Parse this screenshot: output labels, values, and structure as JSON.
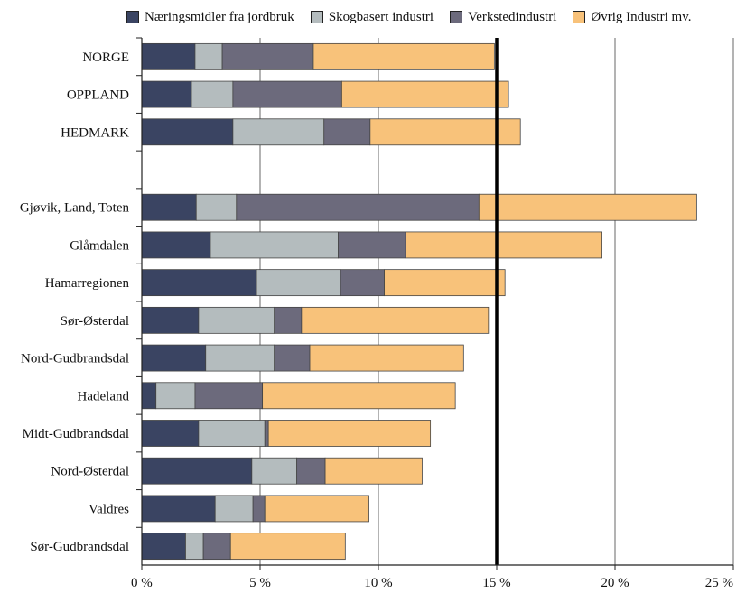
{
  "chart_data": {
    "type": "bar",
    "orientation": "horizontal",
    "stacked": true,
    "categories": [
      "NORGE",
      "OPPLAND",
      "HEDMARK",
      "",
      "Gjøvik, Land, Toten",
      "Glåmdalen",
      "Hamarregionen",
      "Sør-Østerdal",
      "Nord-Gudbrandsdal",
      "Hadeland",
      "Midt-Gudbrandsdal",
      "Nord-Østerdal",
      "Valdres",
      "Sør-Gudbrandsdal"
    ],
    "series": [
      {
        "name": "Næringsmidler fra jordbruk",
        "color": "#3a4462",
        "values": [
          2.25,
          2.1,
          3.85,
          null,
          2.3,
          2.9,
          4.85,
          2.4,
          2.7,
          0.6,
          2.4,
          4.65,
          3.1,
          1.85
        ]
      },
      {
        "name": "Skogbasert industri",
        "color": "#b4bcbe",
        "values": [
          1.15,
          1.75,
          3.85,
          null,
          1.7,
          5.4,
          3.55,
          3.2,
          2.9,
          1.65,
          2.8,
          1.9,
          1.6,
          0.75
        ]
      },
      {
        "name": "Verkstedindustri",
        "color": "#6c6a7c",
        "values": [
          3.85,
          4.6,
          1.95,
          null,
          10.25,
          2.85,
          1.85,
          1.15,
          1.5,
          2.85,
          0.15,
          1.2,
          0.5,
          1.15
        ]
      },
      {
        "name": "Øvrig Industri mv.",
        "color": "#f8c27a",
        "values": [
          7.65,
          7.05,
          6.35,
          null,
          9.2,
          8.3,
          5.1,
          7.9,
          6.5,
          8.15,
          6.85,
          4.1,
          4.4,
          4.85
        ]
      }
    ],
    "xlim": [
      0,
      25
    ],
    "xticks": [
      0,
      5,
      10,
      15,
      20,
      25
    ],
    "xtick_labels": [
      "0 %",
      "5 %",
      "10 %",
      "15 %",
      "20 %",
      "25 %"
    ],
    "reference_line": 15,
    "grid": "vertical",
    "legend_position": "top",
    "title": "",
    "xlabel": "",
    "ylabel": ""
  }
}
